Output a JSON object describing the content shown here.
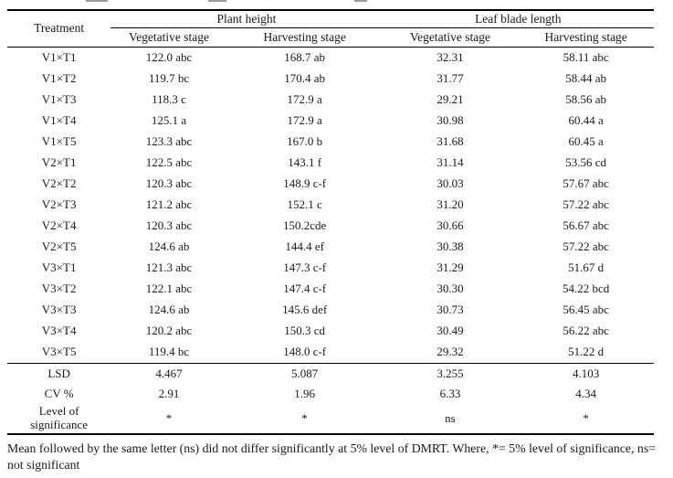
{
  "table": {
    "col1_header": "Treatment",
    "groups": [
      {
        "label": "Plant height",
        "subcols": [
          "Vegetative stage",
          "Harvesting stage"
        ]
      },
      {
        "label": "Leaf blade length",
        "subcols": [
          "Vegetative stage",
          "Harvesting stage"
        ]
      }
    ],
    "rows": [
      {
        "treatment": "V1×T1",
        "values": [
          "122.0 abc",
          "168.7 ab",
          "32.31",
          "58.11 abc"
        ]
      },
      {
        "treatment": "V1×T2",
        "values": [
          "119.7 bc",
          "170.4 ab",
          "31.77",
          "58.44 ab"
        ]
      },
      {
        "treatment": "V1×T3",
        "values": [
          "118.3 c",
          "172.9 a",
          "29.21",
          "58.56 ab"
        ]
      },
      {
        "treatment": "V1×T4",
        "values": [
          "125.1 a",
          "172.9 a",
          "30.98",
          "60.44 a"
        ]
      },
      {
        "treatment": "V1×T5",
        "values": [
          "123.3 abc",
          "167.0 b",
          "31.68",
          "60.45 a"
        ]
      },
      {
        "treatment": "V2×T1",
        "values": [
          "122.5 abc",
          "143.1 f",
          "31.14",
          "53.56 cd"
        ]
      },
      {
        "treatment": "V2×T2",
        "values": [
          "120.3 abc",
          "148.9 c-f",
          "30.03",
          "57.67 abc"
        ]
      },
      {
        "treatment": "V2×T3",
        "values": [
          "121.2 abc",
          "152.1 c",
          "31.20",
          "57.22 abc"
        ]
      },
      {
        "treatment": "V2×T4",
        "values": [
          "120.3 abc",
          "150.2cde",
          "30.66",
          "56.67 abc"
        ]
      },
      {
        "treatment": "V2×T5",
        "values": [
          "124.6 ab",
          "144.4 ef",
          "30.38",
          "57.22 abc"
        ]
      },
      {
        "treatment": "V3×T1",
        "values": [
          "121.3 abc",
          "147.3 c-f",
          "31.29",
          "51.67 d"
        ]
      },
      {
        "treatment": "V3×T2",
        "values": [
          "122.1 abc",
          "147.4 c-f",
          "30.30",
          "54.22 bcd"
        ]
      },
      {
        "treatment": "V3×T3",
        "values": [
          "124.6 ab",
          "145.6 def",
          "30.73",
          "56.45 abc"
        ]
      },
      {
        "treatment": "V3×T4",
        "values": [
          "120.2 abc",
          "150.3 cd",
          "30.49",
          "56.22 abc"
        ]
      },
      {
        "treatment": "V3×T5",
        "values": [
          "119.4 bc",
          "148.0 c-f",
          "29.32",
          "51.22 d"
        ]
      }
    ],
    "summary_rows": [
      {
        "label": "LSD",
        "values": [
          "4.467",
          "5.087",
          "3.255",
          "4.103"
        ]
      },
      {
        "label": "CV %",
        "values": [
          "2.91",
          "1.96",
          "6.33",
          "4.34"
        ]
      },
      {
        "label": "Level of significance",
        "values": [
          "*",
          "*",
          "ns",
          "*"
        ]
      }
    ]
  },
  "footnote": "Mean followed by the same letter (ns) did not differ significantly at 5% level of DMRT. Where, *= 5% level of significance, ns= not significant"
}
